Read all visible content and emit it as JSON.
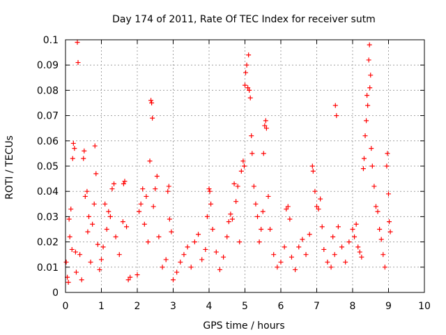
{
  "chart_data": {
    "type": "scatter",
    "title": "Day 174 of 2011, Rate Of TEC Index for receiver sutm",
    "xlabel": "GPS time / hours",
    "ylabel": "ROTI / TECUs",
    "xlim": [
      0,
      10
    ],
    "ylim": [
      0,
      0.1
    ],
    "x_ticks": [
      0,
      1,
      2,
      3,
      4,
      5,
      6,
      7,
      8,
      9,
      10
    ],
    "y_ticks": [
      0,
      0.01,
      0.02,
      0.03,
      0.04,
      0.05,
      0.06,
      0.07,
      0.08,
      0.09,
      0.1
    ],
    "x_tick_labels": [
      "0",
      "1",
      "2",
      "3",
      "4",
      "5",
      "6",
      "7",
      "8",
      "9",
      "10"
    ],
    "y_tick_labels": [
      "0",
      "0.01",
      "0.02",
      "0.03",
      "0.04",
      "0.05",
      "0.06",
      "0.07",
      "0.08",
      "0.09",
      "0.1"
    ],
    "grid": true,
    "marker": "+",
    "color": "#ff0000",
    "series": [
      {
        "name": "ROTI",
        "points": [
          [
            0.02,
            0.012
          ],
          [
            0.05,
            0.006
          ],
          [
            0.08,
            0.004
          ],
          [
            0.1,
            0.029
          ],
          [
            0.12,
            0.022
          ],
          [
            0.15,
            0.033
          ],
          [
            0.18,
            0.017
          ],
          [
            0.2,
            0.053
          ],
          [
            0.22,
            0.059
          ],
          [
            0.25,
            0.057
          ],
          [
            0.28,
            0.016
          ],
          [
            0.3,
            0.008
          ],
          [
            0.33,
            0.099
          ],
          [
            0.35,
            0.091
          ],
          [
            0.4,
            0.015
          ],
          [
            0.45,
            0.005
          ],
          [
            0.5,
            0.053
          ],
          [
            0.52,
            0.056
          ],
          [
            0.55,
            0.038
          ],
          [
            0.6,
            0.04
          ],
          [
            0.62,
            0.024
          ],
          [
            0.65,
            0.03
          ],
          [
            0.7,
            0.012
          ],
          [
            0.75,
            0.027
          ],
          [
            0.8,
            0.035
          ],
          [
            0.82,
            0.058
          ],
          [
            0.85,
            0.047
          ],
          [
            0.9,
            0.019
          ],
          [
            0.95,
            0.009
          ],
          [
            1.0,
            0.013
          ],
          [
            1.05,
            0.018
          ],
          [
            1.1,
            0.035
          ],
          [
            1.15,
            0.025
          ],
          [
            1.2,
            0.032
          ],
          [
            1.25,
            0.03
          ],
          [
            1.3,
            0.041
          ],
          [
            1.35,
            0.043
          ],
          [
            1.4,
            0.022
          ],
          [
            1.5,
            0.015
          ],
          [
            1.6,
            0.028
          ],
          [
            1.62,
            0.043
          ],
          [
            1.65,
            0.044
          ],
          [
            1.7,
            0.026
          ],
          [
            1.75,
            0.005
          ],
          [
            1.8,
            0.006
          ],
          [
            2.0,
            0.007
          ],
          [
            2.05,
            0.032
          ],
          [
            2.1,
            0.035
          ],
          [
            2.15,
            0.041
          ],
          [
            2.2,
            0.027
          ],
          [
            2.25,
            0.038
          ],
          [
            2.3,
            0.02
          ],
          [
            2.35,
            0.052
          ],
          [
            2.38,
            0.076
          ],
          [
            2.4,
            0.075
          ],
          [
            2.42,
            0.069
          ],
          [
            2.45,
            0.034
          ],
          [
            2.5,
            0.041
          ],
          [
            2.55,
            0.046
          ],
          [
            2.6,
            0.022
          ],
          [
            2.7,
            0.01
          ],
          [
            2.8,
            0.013
          ],
          [
            2.85,
            0.04
          ],
          [
            2.88,
            0.042
          ],
          [
            2.9,
            0.029
          ],
          [
            2.95,
            0.024
          ],
          [
            3.0,
            0.005
          ],
          [
            3.1,
            0.008
          ],
          [
            3.2,
            0.012
          ],
          [
            3.3,
            0.015
          ],
          [
            3.4,
            0.018
          ],
          [
            3.5,
            0.01
          ],
          [
            3.6,
            0.02
          ],
          [
            3.7,
            0.023
          ],
          [
            3.8,
            0.013
          ],
          [
            3.9,
            0.017
          ],
          [
            3.95,
            0.03
          ],
          [
            4.0,
            0.041
          ],
          [
            4.02,
            0.04
          ],
          [
            4.05,
            0.035
          ],
          [
            4.1,
            0.025
          ],
          [
            4.2,
            0.016
          ],
          [
            4.3,
            0.009
          ],
          [
            4.4,
            0.014
          ],
          [
            4.5,
            0.022
          ],
          [
            4.55,
            0.028
          ],
          [
            4.6,
            0.031
          ],
          [
            4.65,
            0.029
          ],
          [
            4.7,
            0.043
          ],
          [
            4.75,
            0.036
          ],
          [
            4.8,
            0.042
          ],
          [
            4.85,
            0.02
          ],
          [
            4.9,
            0.048
          ],
          [
            4.95,
            0.052
          ],
          [
            4.98,
            0.05
          ],
          [
            5.0,
            0.082
          ],
          [
            5.02,
            0.087
          ],
          [
            5.05,
            0.09
          ],
          [
            5.08,
            0.081
          ],
          [
            5.1,
            0.094
          ],
          [
            5.12,
            0.08
          ],
          [
            5.15,
            0.077
          ],
          [
            5.18,
            0.062
          ],
          [
            5.2,
            0.055
          ],
          [
            5.25,
            0.042
          ],
          [
            5.3,
            0.035
          ],
          [
            5.35,
            0.03
          ],
          [
            5.4,
            0.02
          ],
          [
            5.45,
            0.025
          ],
          [
            5.5,
            0.032
          ],
          [
            5.52,
            0.055
          ],
          [
            5.55,
            0.066
          ],
          [
            5.58,
            0.068
          ],
          [
            5.6,
            0.065
          ],
          [
            5.65,
            0.038
          ],
          [
            5.7,
            0.025
          ],
          [
            5.8,
            0.015
          ],
          [
            5.9,
            0.01
          ],
          [
            6.0,
            0.012
          ],
          [
            6.1,
            0.018
          ],
          [
            6.15,
            0.033
          ],
          [
            6.2,
            0.034
          ],
          [
            6.25,
            0.029
          ],
          [
            6.3,
            0.014
          ],
          [
            6.4,
            0.009
          ],
          [
            6.5,
            0.018
          ],
          [
            6.6,
            0.021
          ],
          [
            6.7,
            0.015
          ],
          [
            6.8,
            0.023
          ],
          [
            6.88,
            0.05
          ],
          [
            6.9,
            0.048
          ],
          [
            6.95,
            0.04
          ],
          [
            7.0,
            0.034
          ],
          [
            7.05,
            0.033
          ],
          [
            7.1,
            0.037
          ],
          [
            7.15,
            0.026
          ],
          [
            7.2,
            0.017
          ],
          [
            7.3,
            0.012
          ],
          [
            7.4,
            0.01
          ],
          [
            7.45,
            0.022
          ],
          [
            7.5,
            0.015
          ],
          [
            7.52,
            0.074
          ],
          [
            7.55,
            0.07
          ],
          [
            7.6,
            0.026
          ],
          [
            7.7,
            0.018
          ],
          [
            7.8,
            0.012
          ],
          [
            7.9,
            0.02
          ],
          [
            8.0,
            0.025
          ],
          [
            8.05,
            0.022
          ],
          [
            8.1,
            0.027
          ],
          [
            8.15,
            0.018
          ],
          [
            8.2,
            0.016
          ],
          [
            8.25,
            0.014
          ],
          [
            8.3,
            0.049
          ],
          [
            8.32,
            0.053
          ],
          [
            8.35,
            0.062
          ],
          [
            8.38,
            0.068
          ],
          [
            8.4,
            0.078
          ],
          [
            8.42,
            0.074
          ],
          [
            8.45,
            0.092
          ],
          [
            8.47,
            0.098
          ],
          [
            8.48,
            0.081
          ],
          [
            8.5,
            0.086
          ],
          [
            8.52,
            0.057
          ],
          [
            8.55,
            0.05
          ],
          [
            8.6,
            0.042
          ],
          [
            8.65,
            0.034
          ],
          [
            8.7,
            0.032
          ],
          [
            8.75,
            0.025
          ],
          [
            8.8,
            0.021
          ],
          [
            8.85,
            0.015
          ],
          [
            8.9,
            0.01
          ],
          [
            8.95,
            0.05
          ],
          [
            8.97,
            0.055
          ],
          [
            9.0,
            0.039
          ],
          [
            9.02,
            0.028
          ],
          [
            9.05,
            0.024
          ]
        ]
      }
    ]
  }
}
